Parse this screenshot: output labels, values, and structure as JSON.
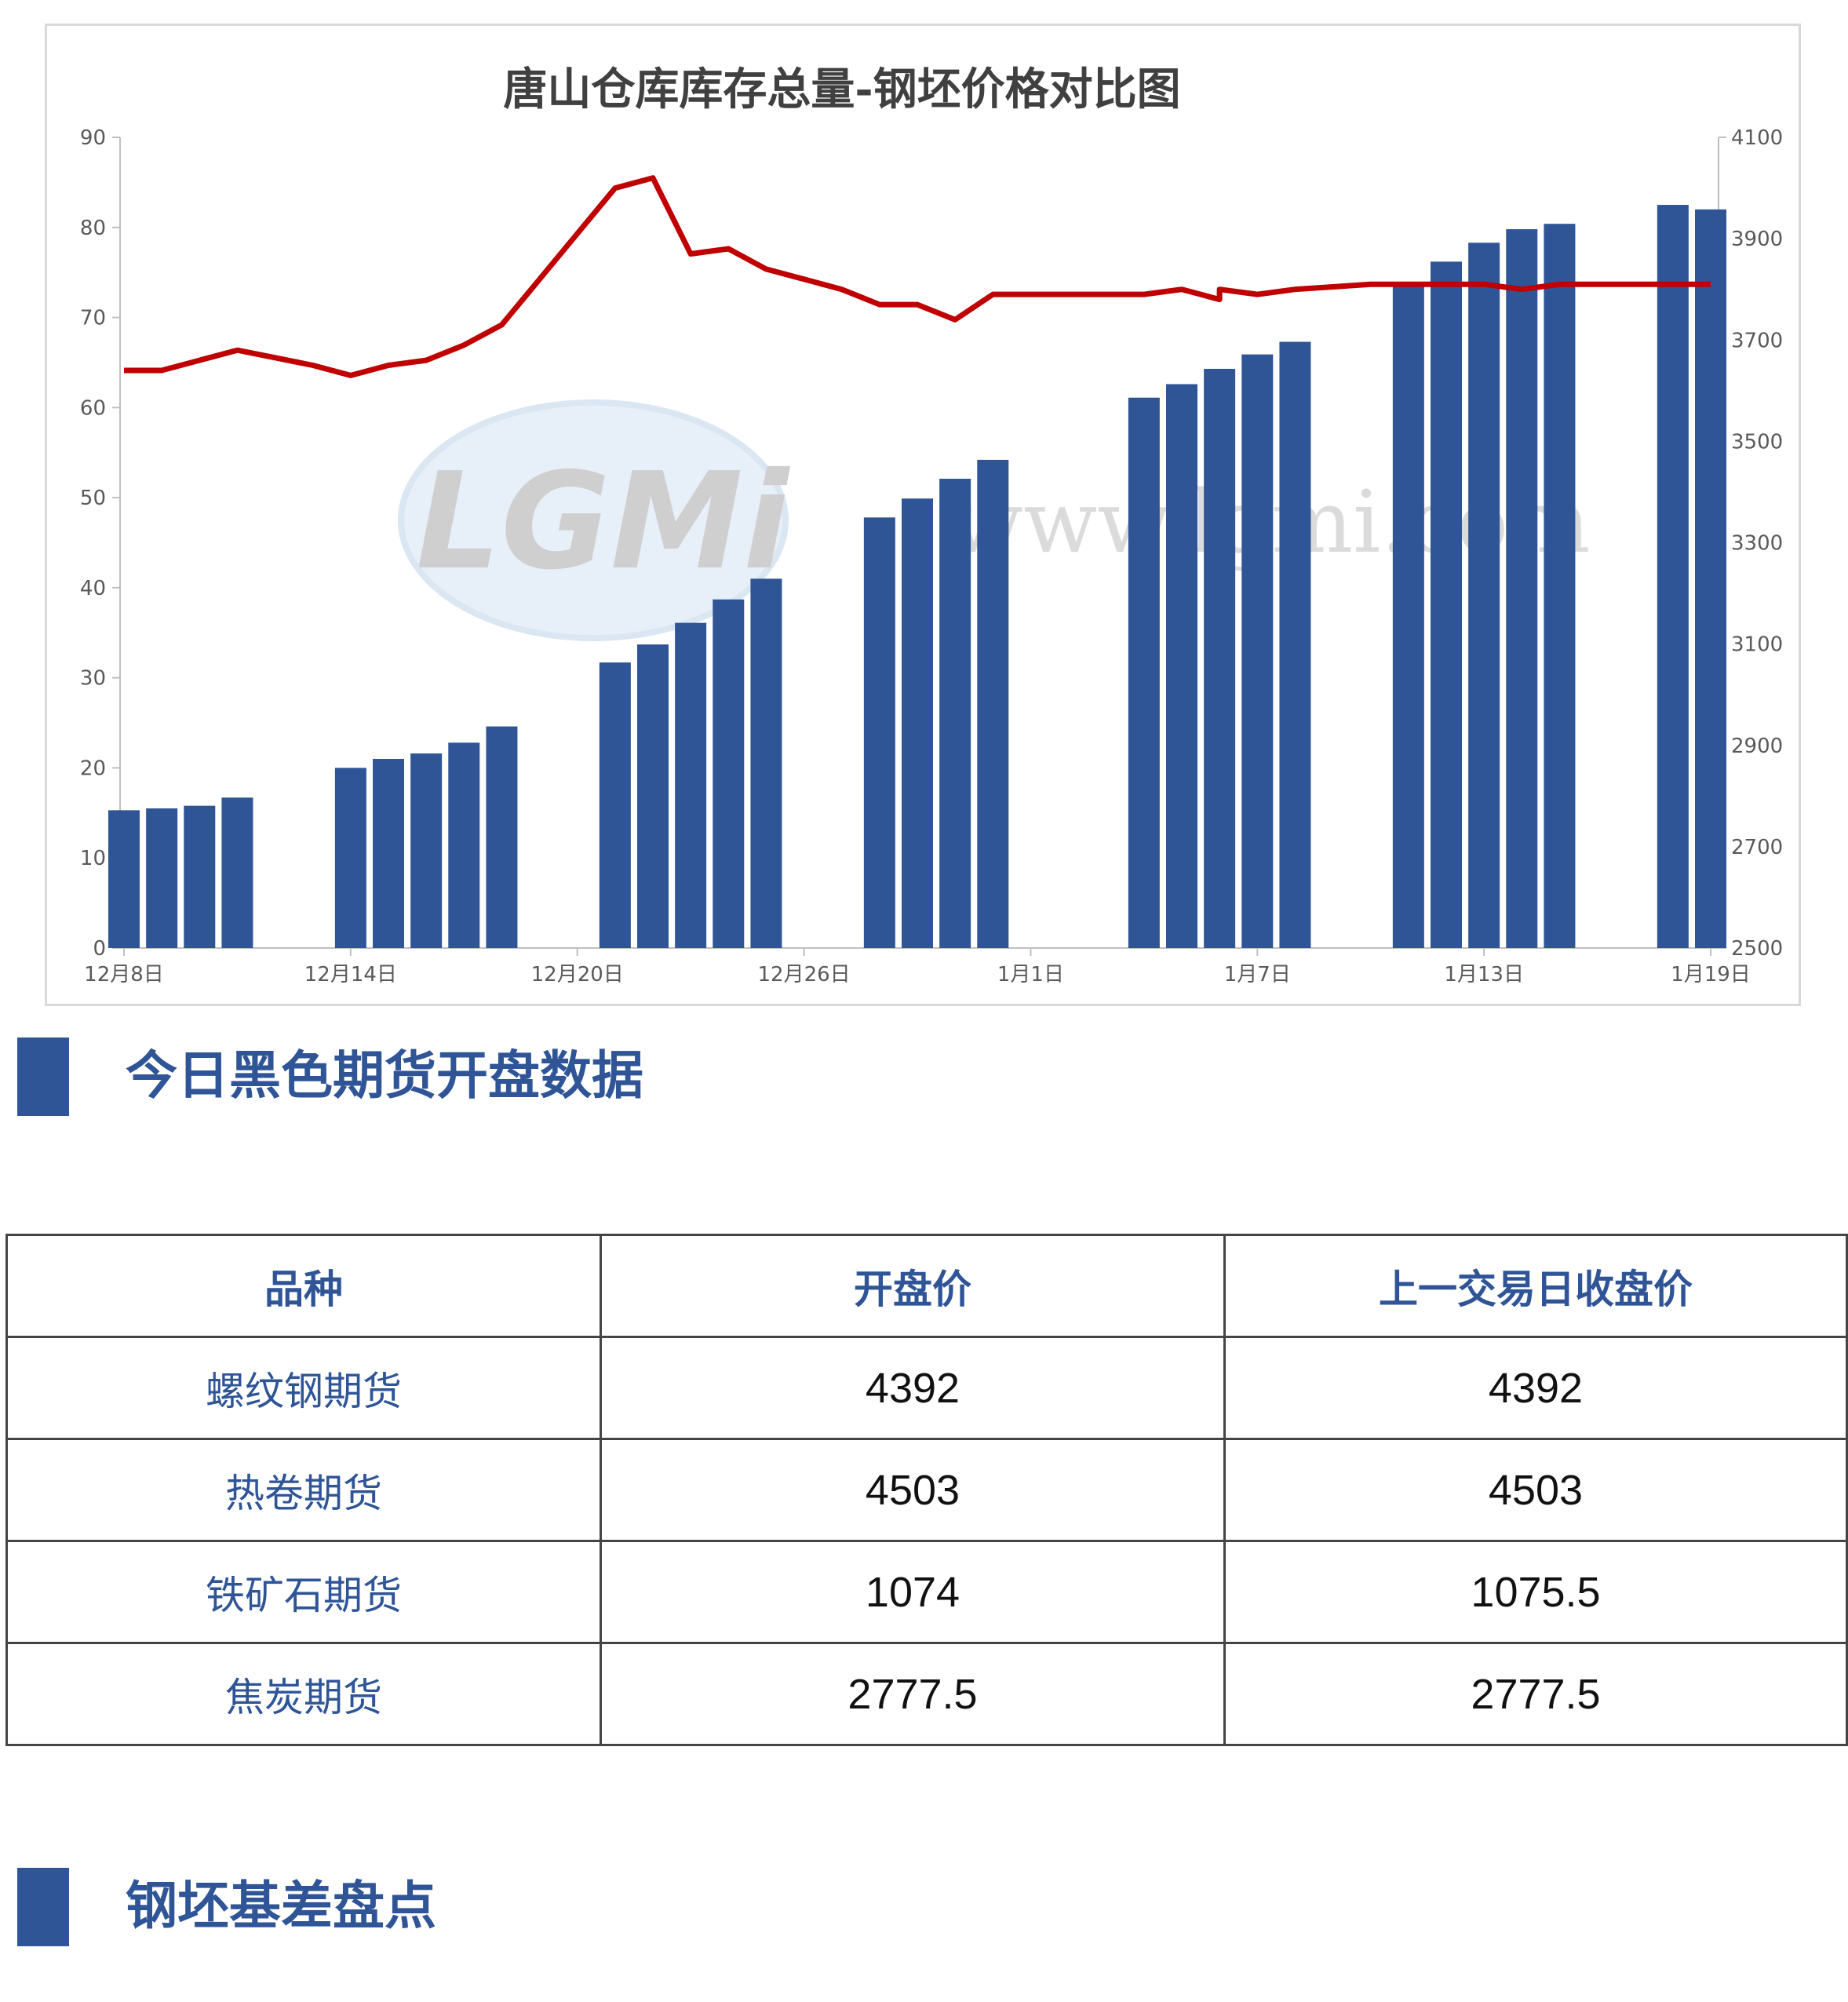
{
  "chart_data": {
    "type": "bar+line",
    "title": "唐山仓库库存总量-钢坯价格对比图",
    "x_tick_labels": [
      "12月8日",
      "12月14日",
      "12月20日",
      "12月26日",
      "1月1日",
      "1月7日",
      "1月13日",
      "1月19日"
    ],
    "left_axis": {
      "ylim": [
        0,
        90
      ],
      "ticks": [
        0,
        10,
        20,
        30,
        40,
        50,
        60,
        70,
        80,
        90
      ]
    },
    "right_axis": {
      "ylim": [
        2500,
        4100
      ],
      "ticks": [
        2500,
        2700,
        2900,
        3100,
        3300,
        3500,
        3700,
        3900,
        4100
      ]
    },
    "bar_color": "#2f5597",
    "line_color": "#c00000",
    "x_range_days": [
      0,
      42
    ],
    "bars": [
      {
        "day": 0,
        "value": 15.3
      },
      {
        "day": 1,
        "value": 15.5
      },
      {
        "day": 2,
        "value": 15.8
      },
      {
        "day": 3,
        "value": 16.7
      },
      {
        "day": 6,
        "value": 20.0
      },
      {
        "day": 7,
        "value": 21.0
      },
      {
        "day": 8,
        "value": 21.6
      },
      {
        "day": 9,
        "value": 22.8
      },
      {
        "day": 10,
        "value": 24.6
      },
      {
        "day": 13,
        "value": 31.7
      },
      {
        "day": 14,
        "value": 33.7
      },
      {
        "day": 15,
        "value": 36.1
      },
      {
        "day": 16,
        "value": 38.7
      },
      {
        "day": 17,
        "value": 41.0
      },
      {
        "day": 20,
        "value": 47.8
      },
      {
        "day": 21,
        "value": 49.9
      },
      {
        "day": 22,
        "value": 52.1
      },
      {
        "day": 23,
        "value": 54.2
      },
      {
        "day": 27,
        "value": 61.1
      },
      {
        "day": 28,
        "value": 62.6
      },
      {
        "day": 29,
        "value": 64.3
      },
      {
        "day": 30,
        "value": 65.9
      },
      {
        "day": 31,
        "value": 67.3
      },
      {
        "day": 34,
        "value": 73.8
      },
      {
        "day": 35,
        "value": 76.2
      },
      {
        "day": 36,
        "value": 78.3
      },
      {
        "day": 37,
        "value": 79.8
      },
      {
        "day": 38,
        "value": 80.4
      },
      {
        "day": 41,
        "value": 82.5
      },
      {
        "day": 42,
        "value": 82.0
      }
    ],
    "line": [
      {
        "day": 0,
        "value": 3640
      },
      {
        "day": 1,
        "value": 3640
      },
      {
        "day": 2,
        "value": 3660
      },
      {
        "day": 3,
        "value": 3680
      },
      {
        "day": 4,
        "value": 3665
      },
      {
        "day": 5,
        "value": 3650
      },
      {
        "day": 6,
        "value": 3630
      },
      {
        "day": 7,
        "value": 3650
      },
      {
        "day": 8,
        "value": 3660
      },
      {
        "day": 9,
        "value": 3690
      },
      {
        "day": 10,
        "value": 3730
      },
      {
        "day": 11,
        "value": 3820
      },
      {
        "day": 12,
        "value": 3910
      },
      {
        "day": 13,
        "value": 4000
      },
      {
        "day": 14,
        "value": 4020
      },
      {
        "day": 15,
        "value": 3870
      },
      {
        "day": 16,
        "value": 3880
      },
      {
        "day": 17,
        "value": 3840
      },
      {
        "day": 18,
        "value": 3820
      },
      {
        "day": 19,
        "value": 3800
      },
      {
        "day": 20,
        "value": 3770
      },
      {
        "day": 21,
        "value": 3770
      },
      {
        "day": 22,
        "value": 3740
      },
      {
        "day": 23,
        "value": 3790
      },
      {
        "day": 24,
        "value": 3790
      },
      {
        "day": 25,
        "value": 3790
      },
      {
        "day": 26,
        "value": 3790
      },
      {
        "day": 27,
        "value": 3790
      },
      {
        "day": 28,
        "value": 3800
      },
      {
        "day": 29,
        "value": 3780
      },
      {
        "day": 29,
        "value": 3800
      },
      {
        "day": 30,
        "value": 3790
      },
      {
        "day": 31,
        "value": 3800
      },
      {
        "day": 32,
        "value": 3805
      },
      {
        "day": 33,
        "value": 3810
      },
      {
        "day": 34,
        "value": 3810
      },
      {
        "day": 35,
        "value": 3810
      },
      {
        "day": 36,
        "value": 3810
      },
      {
        "day": 37,
        "value": 3800
      },
      {
        "day": 38,
        "value": 3810
      },
      {
        "day": 39,
        "value": 3810
      },
      {
        "day": 40,
        "value": 3810
      },
      {
        "day": 41,
        "value": 3810
      },
      {
        "day": 42,
        "value": 3810
      }
    ],
    "x_tick_days": [
      0,
      6,
      12,
      18,
      24,
      30,
      36,
      42
    ],
    "grid": false,
    "legend": "none",
    "watermark": "LGMI www.lgmi.com"
  },
  "sections": {
    "futures_title": "今日黑色期货开盘数据",
    "basis_title": "钢坯基差盘点"
  },
  "table": {
    "headers": [
      "品种",
      "开盘价",
      "上一交易日收盘价"
    ],
    "rows": [
      [
        "螺纹钢期货",
        "4392",
        "4392"
      ],
      [
        "热卷期货",
        "4503",
        "4503"
      ],
      [
        "铁矿石期货",
        "1074",
        "1075.5"
      ],
      [
        "焦炭期货",
        "2777.5",
        "2777.5"
      ]
    ]
  }
}
